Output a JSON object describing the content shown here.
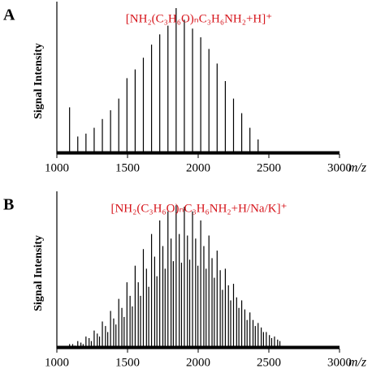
{
  "chart_data": [
    {
      "type": "stem",
      "panel_label": "A",
      "title": "[NH₂(C₃H₆O)ₙC₃H₆NH₂+H]⁺",
      "y_label": "Signal Intensity",
      "x_label": "m/z",
      "color": "#000000",
      "x": [
        1090,
        1148,
        1206,
        1264,
        1322,
        1380,
        1438,
        1496,
        1554,
        1612,
        1670,
        1728,
        1786,
        1844,
        1902,
        1960,
        2018,
        2076,
        2134,
        2192,
        2250,
        2308,
        2366,
        2424
      ],
      "values": [
        32,
        12,
        14,
        18,
        24,
        30,
        38,
        52,
        58,
        66,
        75,
        82,
        88,
        100,
        92,
        86,
        80,
        72,
        62,
        50,
        38,
        28,
        18,
        10
      ],
      "xlim": [
        1000,
        3000
      ],
      "xticks": [
        1000,
        1500,
        2000,
        2500,
        3000
      ],
      "ylim": [
        0,
        100
      ]
    },
    {
      "type": "stem",
      "panel_label": "B",
      "title": "[NH₂(C₃H₆O)ₙC₃H₆NH₂+H/Na/K]⁺",
      "y_label": "Signal Intensity",
      "x_label": "m/z",
      "color": "#000000",
      "x": [
        1090,
        1112,
        1128,
        1148,
        1170,
        1186,
        1206,
        1228,
        1244,
        1264,
        1286,
        1302,
        1322,
        1344,
        1360,
        1380,
        1402,
        1418,
        1438,
        1460,
        1476,
        1496,
        1518,
        1534,
        1554,
        1576,
        1592,
        1612,
        1634,
        1650,
        1670,
        1692,
        1708,
        1728,
        1750,
        1766,
        1786,
        1808,
        1824,
        1844,
        1866,
        1882,
        1902,
        1924,
        1940,
        1960,
        1982,
        1998,
        2018,
        2040,
        2056,
        2076,
        2098,
        2114,
        2134,
        2156,
        2172,
        2192,
        2214,
        2230,
        2250,
        2272,
        2288,
        2308,
        2330,
        2346,
        2366,
        2388,
        2404,
        2424,
        2446,
        2462,
        2482,
        2504,
        2520,
        2540,
        2562,
        2578
      ],
      "values": [
        3,
        3,
        2,
        5,
        4,
        3,
        8,
        7,
        5,
        12,
        10,
        8,
        18,
        15,
        11,
        25,
        20,
        16,
        33,
        27,
        21,
        44,
        35,
        28,
        55,
        44,
        35,
        66,
        53,
        41,
        76,
        61,
        48,
        85,
        68,
        53,
        91,
        73,
        58,
        95,
        76,
        57,
        94,
        75,
        59,
        91,
        73,
        55,
        85,
        68,
        53,
        75,
        60,
        47,
        65,
        52,
        39,
        53,
        42,
        32,
        43,
        34,
        27,
        32,
        26,
        19,
        24,
        19,
        15,
        17,
        14,
        11,
        11,
        9,
        7,
        8,
        6,
        5
      ],
      "xlim": [
        1000,
        3000
      ],
      "xticks": [
        1000,
        1500,
        2000,
        2500,
        3000
      ],
      "ylim": [
        0,
        100
      ]
    }
  ]
}
